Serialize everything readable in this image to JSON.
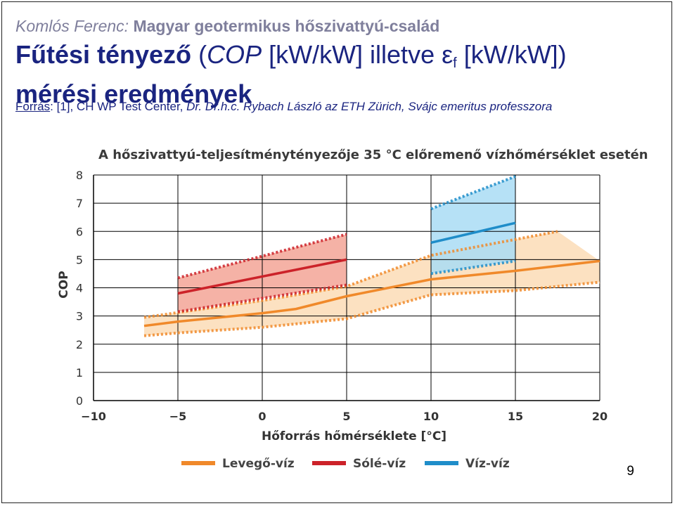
{
  "header": {
    "author": "Komlós Ferenc:",
    "title": "Magyar geotermikus hőszivattyú-család"
  },
  "slide_title": {
    "part1": "Fűtési tényező",
    "part2": " (",
    "part3": "COP",
    "part4": " [kW/kW] illetve ε",
    "sub": "f",
    "part5": " [kW/kW])",
    "line2": "mérési eredmények"
  },
  "source": {
    "label": "Forrás",
    "text": ": [1], CH WP Test Center, ",
    "author": "Dr. Dr.h.c. Rybach László az ETH Zürich, Svájc emeritus professzora"
  },
  "page_number": "9",
  "colors": {
    "levego": "#f0892a",
    "sole": "#cc2229",
    "viz": "#1f8dc9",
    "levego_fill": "#fbdcb6",
    "sole_fill": "#f3a597",
    "viz_fill": "#a9dcf4",
    "grid": "#000000"
  },
  "chart_data": {
    "type": "line",
    "title": "A hőszivattyú-teljesítménytényezője 35 °C előremenő vízhőmérséklet esetén",
    "xlabel": "Hőforrás hőmérséklete [°C]",
    "ylabel": "COP",
    "xlim": [
      -10,
      20
    ],
    "ylim": [
      0,
      8
    ],
    "x_ticks": [
      "−10",
      "−5",
      "0",
      "5",
      "10",
      "15",
      "20"
    ],
    "y_ticks": [
      "0",
      "1",
      "2",
      "3",
      "4",
      "5",
      "6",
      "7",
      "8"
    ],
    "grid": true,
    "legend_position": "bottom",
    "series": [
      {
        "name": "Levegő-víz",
        "color_key": "levego",
        "x": [
          -7,
          -5,
          0,
          2,
          5,
          10,
          15,
          20
        ],
        "y": [
          2.65,
          2.8,
          3.1,
          3.25,
          3.7,
          4.3,
          4.6,
          4.95
        ],
        "band": {
          "upper": {
            "x": [
              -7,
              0,
              5,
              10,
              17.5
            ],
            "y": [
              2.95,
              3.55,
              4.05,
              5.15,
              6.0
            ]
          },
          "lower": {
            "x": [
              -7,
              -5,
              0,
              5,
              10,
              15,
              20
            ],
            "y": [
              2.3,
              2.4,
              2.6,
              2.9,
              3.75,
              3.9,
              4.2
            ]
          },
          "upper_end": {
            "x": [
              17.5,
              20
            ],
            "y": [
              6.0,
              4.95
            ]
          }
        }
      },
      {
        "name": "Sólé-víz",
        "color_key": "sole",
        "x": [
          -5,
          5
        ],
        "y": [
          3.8,
          5.0
        ],
        "band": {
          "upper": {
            "x": [
              -5,
              5
            ],
            "y": [
              4.35,
              5.9
            ]
          },
          "lower": {
            "x": [
              -5,
              5
            ],
            "y": [
              3.15,
              4.1
            ]
          }
        }
      },
      {
        "name": "Víz-víz",
        "color_key": "viz",
        "x": [
          10,
          15
        ],
        "y": [
          5.6,
          6.3
        ],
        "band": {
          "upper": {
            "x": [
              10,
              15
            ],
            "y": [
              6.8,
              7.95
            ]
          },
          "lower": {
            "x": [
              10,
              15
            ],
            "y": [
              4.5,
              4.95
            ]
          }
        }
      }
    ]
  }
}
